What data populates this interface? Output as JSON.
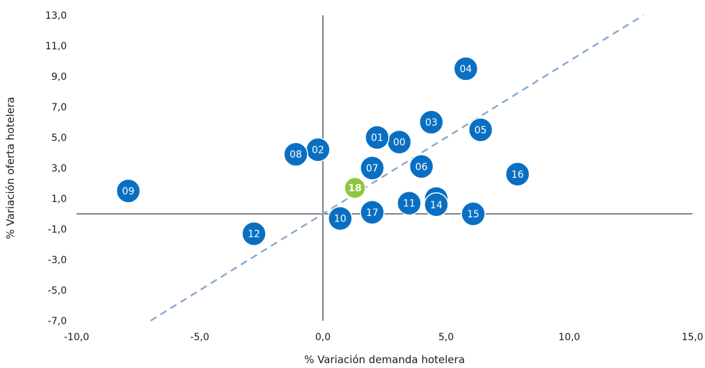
{
  "chart_data": {
    "type": "scatter",
    "xlabel": "% Variación demanda hotelera",
    "ylabel": "% Variación oferta hotelera",
    "xlim": [
      -10,
      15
    ],
    "ylim": [
      -7,
      13
    ],
    "x_ticks": [
      "-10,0",
      "-5,0",
      "0,0",
      "5,0",
      "10,0",
      "15,0"
    ],
    "y_ticks": [
      "13,0",
      "11,0",
      "9,0",
      "7,0",
      "5,0",
      "3,0",
      "1,0",
      "-1,0",
      "-3,0",
      "-5,0",
      "-7,0"
    ],
    "grid": false,
    "trendline": {
      "style": "dashed",
      "from": [
        -7.0,
        -7.0
      ],
      "to": [
        13.0,
        13.0
      ],
      "color": "#8aa9cc"
    },
    "points": [
      {
        "label": "00",
        "x": 3.1,
        "y": 4.7
      },
      {
        "label": "01",
        "x": 2.2,
        "y": 5.0
      },
      {
        "label": "02",
        "x": -0.2,
        "y": 4.2
      },
      {
        "label": "03",
        "x": 4.4,
        "y": 6.0
      },
      {
        "label": "04",
        "x": 5.8,
        "y": 9.5
      },
      {
        "label": "05",
        "x": 6.4,
        "y": 5.5
      },
      {
        "label": "06",
        "x": 4.0,
        "y": 3.1
      },
      {
        "label": "07",
        "x": 2.0,
        "y": 3.0
      },
      {
        "label": "08",
        "x": -1.1,
        "y": 3.9
      },
      {
        "label": "09",
        "x": -7.9,
        "y": 1.5
      },
      {
        "label": "10",
        "x": 0.7,
        "y": -0.3
      },
      {
        "label": "11",
        "x": 3.5,
        "y": 0.7
      },
      {
        "label": "12",
        "x": -2.8,
        "y": -1.3
      },
      {
        "label": "13",
        "x": 4.6,
        "y": 1.0
      },
      {
        "label": "14",
        "x": 4.6,
        "y": 0.6
      },
      {
        "label": "15",
        "x": 6.1,
        "y": 0.0
      },
      {
        "label": "16",
        "x": 7.9,
        "y": 2.6
      },
      {
        "label": "17",
        "x": 2.0,
        "y": 0.1
      },
      {
        "label": "18",
        "x": 1.3,
        "y": 1.7,
        "highlight": true
      }
    ],
    "colors": {
      "point": "#0a6fc2",
      "highlight": "#8dc63f",
      "axis": "#000000",
      "trend": "#8aa9cc"
    }
  }
}
